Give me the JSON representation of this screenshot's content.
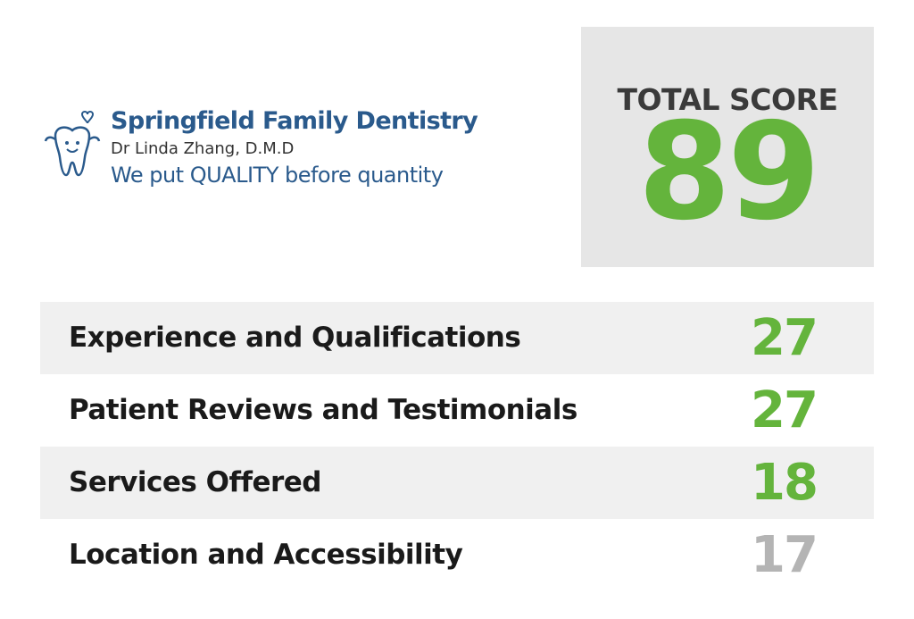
{
  "logo": {
    "name": "Springfield Family Dentistry",
    "doctor": "Dr Linda Zhang, D.M.D",
    "tagline": "We put QUALITY before quantity",
    "icon": "tooth-with-heart-icon",
    "brand_color": "#2a5a8c"
  },
  "total": {
    "label": "TOTAL SCORE",
    "value": "89",
    "color": "#64b43c"
  },
  "criteria": [
    {
      "label": "Experience and Qualifications",
      "value": "27",
      "color": "#64b43c"
    },
    {
      "label": "Patient Reviews and Testimonials",
      "value": "27",
      "color": "#64b43c"
    },
    {
      "label": "Services Offered",
      "value": "18",
      "color": "#64b43c"
    },
    {
      "label": "Location and Accessibility",
      "value": "17",
      "color": "#b4b4b4"
    }
  ]
}
